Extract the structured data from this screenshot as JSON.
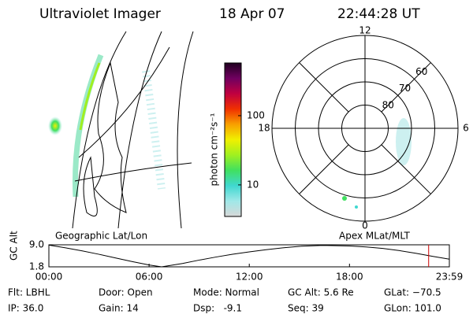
{
  "header": {
    "title": "Ultraviolet Imager",
    "date": "18 Apr 07",
    "time": "22:44:28 UT"
  },
  "left_panel": {
    "label": "Geographic Lat/Lon"
  },
  "polar_panel": {
    "label": "Apex MLat/MLT",
    "rlim": [
      90,
      50
    ],
    "rticks": [
      80,
      70,
      60
    ],
    "hour_labels": [
      12,
      18,
      6,
      0
    ]
  },
  "chart_data": [
    {
      "type": "colorbar",
      "ylabel": "photon cm⁻²s⁻¹",
      "log": true,
      "ylim": [
        3.5,
        577
      ],
      "yticks": [
        10,
        100
      ],
      "colors": [
        "#d8d8d8",
        "#a0e8e8",
        "#40d8d0",
        "#40e060",
        "#a0f020",
        "#f0f000",
        "#f8a000",
        "#f03000",
        "#c00040",
        "#700060",
        "#200020"
      ]
    },
    {
      "type": "line",
      "ylabel": "GC Alt",
      "x": [
        0,
        1,
        2,
        3,
        4,
        5,
        6,
        6.75,
        8,
        9,
        10,
        11,
        12,
        13,
        14,
        15,
        16.4,
        18,
        19,
        20,
        21,
        22,
        23,
        23.98
      ],
      "values": [
        8.9,
        8.0,
        7.0,
        5.9,
        4.7,
        3.5,
        2.4,
        1.8,
        2.9,
        4.0,
        5.0,
        5.9,
        6.7,
        7.4,
        8.0,
        8.5,
        8.8,
        8.6,
        8.3,
        7.8,
        7.1,
        6.2,
        5.2,
        4.3
      ],
      "color": "#000000",
      "xlim": [
        0,
        23.98
      ],
      "xticks": [
        {
          "value": 0,
          "label": "00:00"
        },
        {
          "value": 6,
          "label": "06:00"
        },
        {
          "value": 12,
          "label": "12:00"
        },
        {
          "value": 18,
          "label": "18:00"
        },
        {
          "value": 23.98,
          "label": "23:59"
        }
      ],
      "ylim": [
        1.8,
        9
      ],
      "yticks": [
        1.8,
        {
          "value": 9,
          "label": "9.0"
        }
      ],
      "marker_x": 22.74,
      "marker_color": "#cc0000"
    }
  ],
  "footer": {
    "rows": [
      [
        "Flt: LBHL",
        "Door: Open",
        "Mode: Normal",
        "GC Alt: 5.6 Re",
        "GLat: −70.5"
      ],
      [
        "IP: 36.0",
        "Gain: 14",
        "Dsp:   -9.1",
        "Seq: 39",
        "GLon: 101.0"
      ]
    ]
  }
}
